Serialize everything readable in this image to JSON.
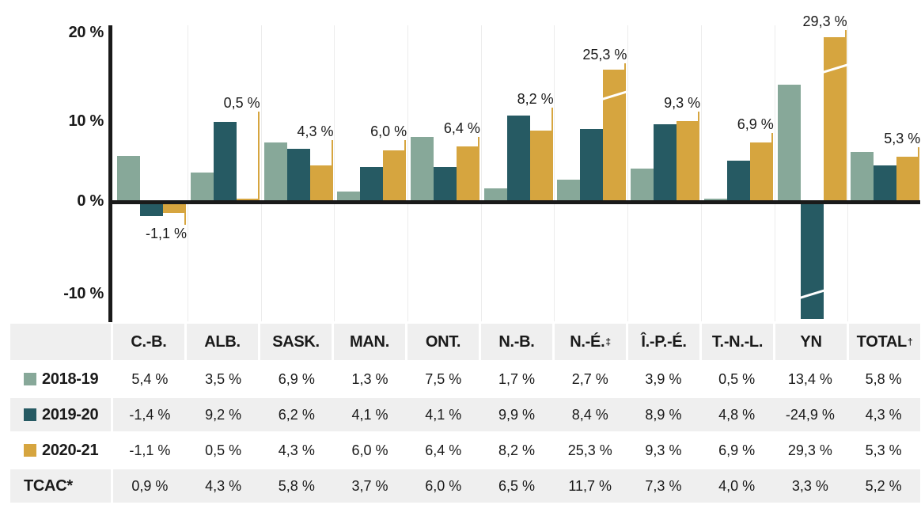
{
  "chart_data": {
    "type": "bar",
    "title": "",
    "categories": [
      "C.-B.",
      "ALB.",
      "SASK.",
      "MAN.",
      "ONT.",
      "N.-B.",
      "N.-É.",
      "Î.-P.-É.",
      "T.-N.-L.",
      "YN",
      "TOTAL"
    ],
    "series": [
      {
        "name": "2018-19",
        "values": [
          5.4,
          3.5,
          6.9,
          1.3,
          7.5,
          1.7,
          2.7,
          3.9,
          0.5,
          13.4,
          5.8
        ]
      },
      {
        "name": "2019-20",
        "values": [
          -1.4,
          9.2,
          6.2,
          4.1,
          4.1,
          9.9,
          8.4,
          8.9,
          4.8,
          -24.9,
          4.3
        ]
      },
      {
        "name": "2020-21",
        "values": [
          -1.1,
          0.5,
          4.3,
          6.0,
          6.4,
          8.2,
          25.3,
          9.3,
          6.9,
          29.3,
          5.3
        ]
      }
    ],
    "callout_labels": [
      "-1,1 %",
      "0,5 %",
      "4,3 %",
      "6,0 %",
      "6,4 %",
      "8,2 %",
      "25,3 %",
      "9,3 %",
      "6,9 %",
      "29,3 %",
      "5,3 %"
    ],
    "y_ticks": [
      {
        "label": "20 %",
        "value": 20
      },
      {
        "label": "10 %",
        "value": 10
      },
      {
        "label": "0 %",
        "value": 0
      },
      {
        "label": "-10 %",
        "value": -10
      }
    ],
    "ylim": [
      -13.2,
      20.4
    ],
    "grid": "vertical-category-separators-only",
    "legend_position": "table-row-labels",
    "truncated_bars": [
      {
        "series": "2019-20",
        "category": "YN",
        "actual_value": -24.9,
        "display_value": -13.0
      },
      {
        "series": "2020-21",
        "category": "N.-É.",
        "actual_value": 25.3,
        "display_value": 15.1
      },
      {
        "series": "2020-21",
        "category": "YN",
        "actual_value": 29.3,
        "display_value": 18.75
      }
    ]
  },
  "colors": {
    "series_2018_19": "#87a899",
    "series_2019_20": "#265a63",
    "series_2020_21": "#d6a53f",
    "axis": "#1a1a1a",
    "text": "#1a1a1a",
    "gridline": "#ececec",
    "table_row_bg": "#efefef",
    "truncation_slash": "#ffffff"
  },
  "table": {
    "header": [
      {
        "label": ""
      },
      {
        "label": "C.-B."
      },
      {
        "label": "ALB."
      },
      {
        "label": "SASK."
      },
      {
        "label": "MAN."
      },
      {
        "label": "ONT."
      },
      {
        "label": "N.-B."
      },
      {
        "label": "N.-É.",
        "sup": "‡"
      },
      {
        "label": "Î.-P.-É."
      },
      {
        "label": "T.-N.-L."
      },
      {
        "label": "YN"
      },
      {
        "label": "TOTAL",
        "sup": "†"
      }
    ],
    "rows": [
      {
        "label": "2018-19",
        "swatch": "series_2018_19",
        "values": [
          "5,4 %",
          "3,5 %",
          "6,9 %",
          "1,3 %",
          "7,5 %",
          "1,7 %",
          "2,7 %",
          "3,9 %",
          "0,5 %",
          "13,4 %",
          "5,8 %"
        ]
      },
      {
        "label": "2019-20",
        "swatch": "series_2019_20",
        "values": [
          "-1,4 %",
          "9,2 %",
          "6,2 %",
          "4,1 %",
          "4,1 %",
          "9,9 %",
          "8,4 %",
          "8,9 %",
          "4,8 %",
          "-24,9 %",
          "4,3 %"
        ]
      },
      {
        "label": "2020-21",
        "swatch": "series_2020_21",
        "values": [
          "-1,1 %",
          "0,5 %",
          "4,3 %",
          "6,0 %",
          "6,4 %",
          "8,2 %",
          "25,3 %",
          "9,3 %",
          "6,9 %",
          "29,3 %",
          "5,3 %"
        ]
      },
      {
        "label": "TCAC*",
        "swatch": null,
        "values": [
          "0,9 %",
          "4,3 %",
          "5,8 %",
          "3,7 %",
          "6,0 %",
          "6,5 %",
          "11,7 %",
          "7,3 %",
          "4,0 %",
          "3,3 %",
          "5,2 %"
        ]
      }
    ]
  }
}
